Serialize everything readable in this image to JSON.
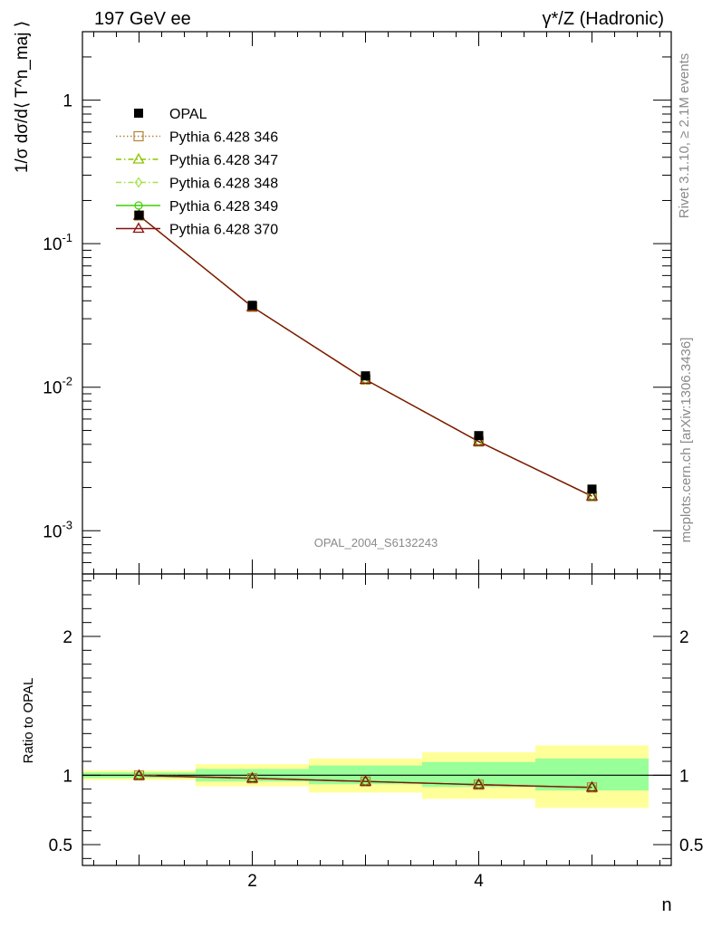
{
  "header": {
    "left": "197 GeV ee",
    "right": "γ*/Z (Hadronic)"
  },
  "side_labels": {
    "rivet": "Rivet 3.1.10, ≥ 2.1M events",
    "mcplots": "mcplots.cern.ch [arXiv:1306.3436]"
  },
  "analysis_id": "OPAL_2004_S6132243",
  "chart_data": [
    {
      "type": "line",
      "panel": "main",
      "ylabel": "1/σ dσ/d⟨ T^n_maj ⟩",
      "xlabel": "n",
      "yscale": "log",
      "xlim": [
        0.5,
        5.7
      ],
      "ylim": [
        0.0005,
        3.0
      ],
      "y_tick_labels": [
        "10^-3",
        "10^-2",
        "10^-1",
        "1"
      ],
      "legend_position": "top-left",
      "x": [
        1,
        2,
        3,
        4,
        5
      ],
      "data_series": {
        "name": "OPAL",
        "values": [
          0.158,
          0.0372,
          0.012,
          0.0046,
          0.00195
        ]
      },
      "series": [
        {
          "name": "Pythia 6.428 346",
          "color": "#b5813a",
          "marker": "square-open",
          "dash": "dotted",
          "values": [
            0.157,
            0.0363,
            0.0113,
            0.00418,
            0.00174
          ]
        },
        {
          "name": "Pythia 6.428 347",
          "color": "#8fc400",
          "marker": "triangle-open",
          "dash": "dash-dot",
          "values": [
            0.157,
            0.0363,
            0.0113,
            0.00418,
            0.00174
          ]
        },
        {
          "name": "Pythia 6.428 348",
          "color": "#a6e24a",
          "marker": "diamond-open",
          "dash": "dash-dot",
          "values": [
            0.157,
            0.0363,
            0.0113,
            0.00418,
            0.00174
          ]
        },
        {
          "name": "Pythia 6.428 349",
          "color": "#3ad200",
          "marker": "circle-open",
          "dash": "solid",
          "values": [
            0.157,
            0.0363,
            0.0113,
            0.00418,
            0.00174
          ]
        },
        {
          "name": "Pythia 6.428 370",
          "color": "#8b0f0f",
          "marker": "triangle-open",
          "dash": "solid",
          "values": [
            0.157,
            0.0363,
            0.0113,
            0.00418,
            0.00174
          ]
        }
      ]
    },
    {
      "type": "line",
      "panel": "ratio",
      "ylabel": "Ratio to OPAL",
      "xlabel": "n",
      "xlim": [
        0.5,
        5.7
      ],
      "ylim": [
        0.35,
        2.45
      ],
      "x_tick_labels": [
        "2",
        "4"
      ],
      "y_tick_labels": [
        "0.5",
        "1",
        "2"
      ],
      "x": [
        1,
        2,
        3,
        4,
        5
      ],
      "bin_edges": [
        0.5,
        1.5,
        2.5,
        3.5,
        4.5,
        5.5
      ],
      "band_inner": [
        {
          "lo": 0.98,
          "hi": 1.02
        },
        {
          "lo": 0.955,
          "hi": 1.045
        },
        {
          "lo": 0.935,
          "hi": 1.07
        },
        {
          "lo": 0.915,
          "hi": 1.095
        },
        {
          "lo": 0.89,
          "hi": 1.12
        }
      ],
      "band_outer": [
        {
          "lo": 0.965,
          "hi": 1.035
        },
        {
          "lo": 0.92,
          "hi": 1.08
        },
        {
          "lo": 0.875,
          "hi": 1.12
        },
        {
          "lo": 0.83,
          "hi": 1.165
        },
        {
          "lo": 0.765,
          "hi": 1.215
        }
      ],
      "ratio_values": [
        0.998,
        0.978,
        0.955,
        0.932,
        0.912
      ],
      "band_colors": {
        "inner": "#99ff99",
        "outer": "#ffff99"
      }
    }
  ]
}
